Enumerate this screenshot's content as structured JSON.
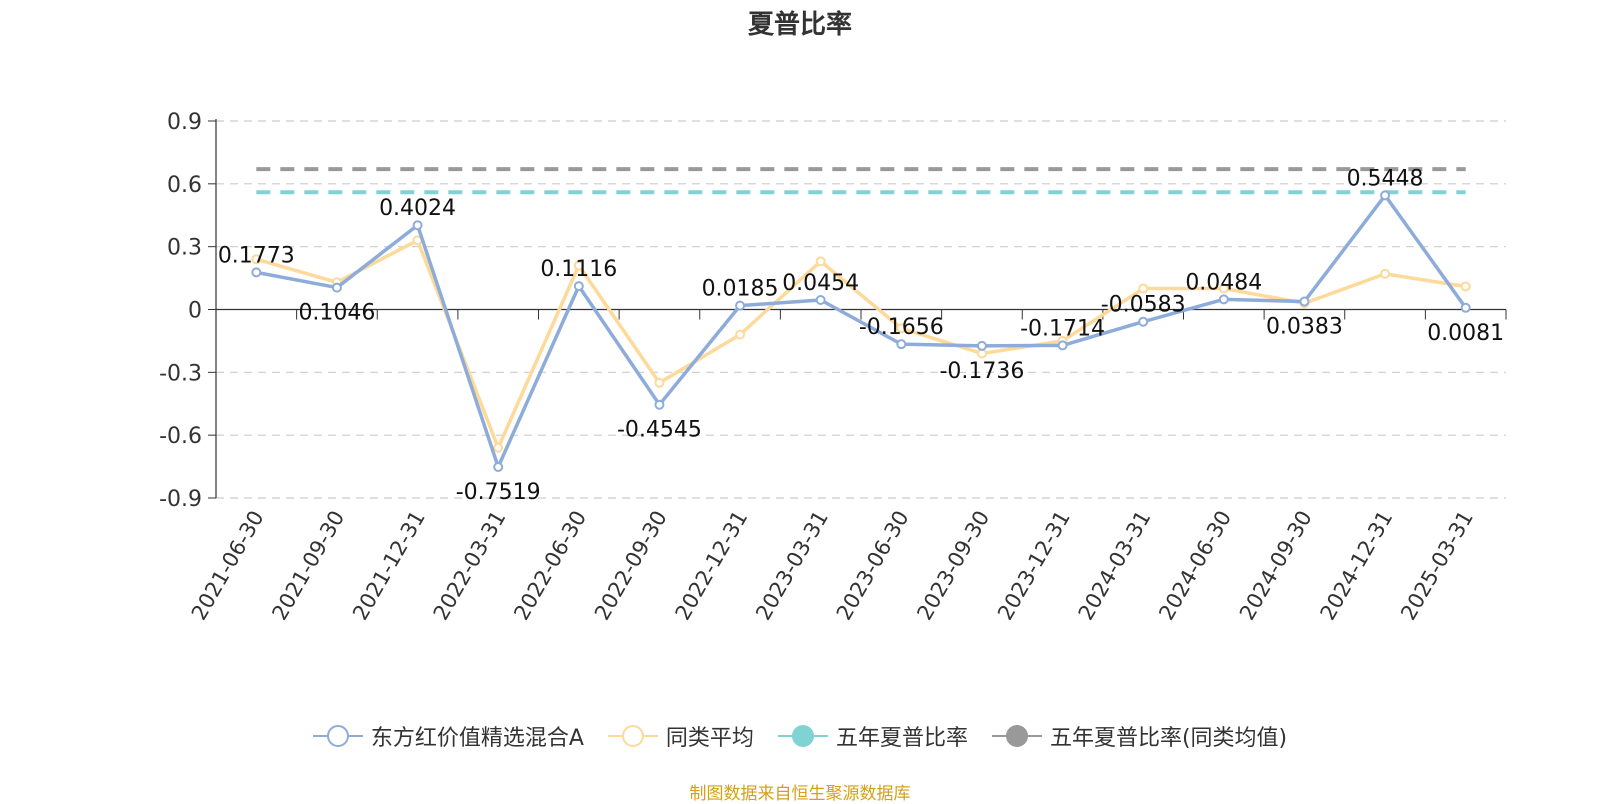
{
  "chart_data": {
    "type": "line",
    "title": "夏普比率",
    "categories": [
      "2021-06-30",
      "2021-09-30",
      "2021-12-31",
      "2022-03-31",
      "2022-06-30",
      "2022-09-30",
      "2022-12-31",
      "2023-03-31",
      "2023-06-30",
      "2023-09-30",
      "2023-12-31",
      "2024-03-31",
      "2024-06-30",
      "2024-09-30",
      "2024-12-31",
      "2025-03-31"
    ],
    "ylim": [
      -0.9,
      0.9
    ],
    "yticks": [
      "0.9",
      "0.6",
      "0.3",
      "0",
      "-0.3",
      "-0.6",
      "-0.9"
    ],
    "grid": true,
    "legend_position": "bottom",
    "series": [
      {
        "name": "东方红价值精选混合A",
        "color": "#8eacd9",
        "values": [
          0.1773,
          0.1046,
          0.4024,
          -0.7519,
          0.1116,
          -0.4545,
          0.0185,
          0.0454,
          -0.1656,
          -0.1736,
          -0.1714,
          -0.0583,
          0.0484,
          0.0383,
          0.5448,
          0.0081
        ],
        "labels": [
          "0.1773",
          "0.1046",
          "0.4024",
          "-0.7519",
          "0.1116",
          "-0.4545",
          "0.0185",
          "0.0454",
          "-0.1656",
          "-0.1736",
          "-0.1714",
          "-0.0583",
          "0.0484",
          "0.0383",
          "0.5448",
          "0.0081"
        ]
      },
      {
        "name": "同类平均",
        "color": "#fdd99a",
        "values": [
          0.24,
          0.13,
          0.33,
          -0.66,
          0.21,
          -0.35,
          -0.12,
          0.23,
          -0.09,
          -0.21,
          -0.15,
          0.1,
          0.1,
          0.03,
          0.17,
          0.11
        ]
      },
      {
        "name": "五年夏普比率",
        "color": "#7fd3d3",
        "type": "reference",
        "value": 0.56
      },
      {
        "name": "五年夏普比率(同类均值)",
        "color": "#999999",
        "type": "reference",
        "value": 0.67
      }
    ]
  },
  "footer": {
    "source": "制图数据来自恒生聚源数据库"
  }
}
